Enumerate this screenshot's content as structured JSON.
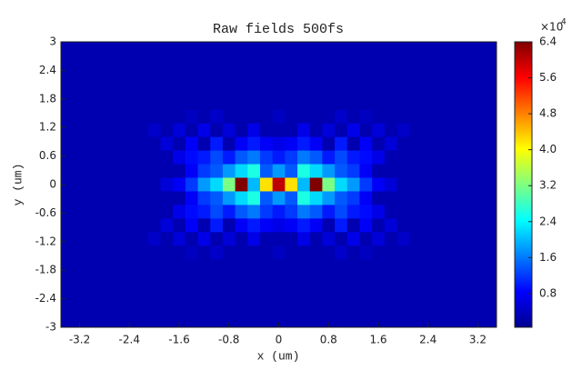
{
  "chart_data": {
    "type": "heatmap",
    "title": "Raw fields 500fs",
    "x_label": "x (um)",
    "y_label": "y (um)",
    "xlim": [
      -3.5,
      3.5
    ],
    "ylim": [
      -3,
      3
    ],
    "xticks": [
      -3.2,
      -2.4,
      -1.6,
      -0.8,
      0,
      0.8,
      1.6,
      2.4,
      3.2
    ],
    "yticks": [
      -3,
      -2.4,
      -1.8,
      -1.2,
      -0.6,
      0,
      0.6,
      1.2,
      1.8,
      2.4,
      3
    ],
    "clim": [
      0.05,
      6.4
    ],
    "cticks": [
      0.8,
      1.6,
      2.4,
      3.2,
      {
        "value": 4,
        "label": "4.0"
      },
      4.8,
      5.6,
      6.4
    ],
    "colorbar_multiplier": "×10",
    "colorbar_exponent": "4",
    "colormap": "jet",
    "z": [
      [
        0.35,
        0.35,
        0.35,
        0.35,
        0.35,
        0.35,
        0.35,
        0.35,
        0.35,
        0.35,
        0.35,
        0.35,
        0.35,
        0.35,
        0.35,
        0.35,
        0.35,
        0.35,
        0.35,
        0.35,
        0.35,
        0.35,
        0.35,
        0.35,
        0.35,
        0.35,
        0.35,
        0.35,
        0.35,
        0.35,
        0.35,
        0.35,
        0.35,
        0.35,
        0.35
      ],
      [
        0.35,
        0.35,
        0.35,
        0.35,
        0.35,
        0.35,
        0.35,
        0.35,
        0.35,
        0.35,
        0.35,
        0.35,
        0.35,
        0.35,
        0.35,
        0.35,
        0.35,
        0.35,
        0.35,
        0.35,
        0.35,
        0.35,
        0.35,
        0.35,
        0.35,
        0.35,
        0.35,
        0.35,
        0.35,
        0.35,
        0.35,
        0.35,
        0.35,
        0.35,
        0.35
      ],
      [
        0.35,
        0.35,
        0.35,
        0.35,
        0.35,
        0.35,
        0.35,
        0.35,
        0.35,
        0.35,
        0.35,
        0.35,
        0.35,
        0.35,
        0.35,
        0.35,
        0.35,
        0.35,
        0.35,
        0.35,
        0.35,
        0.35,
        0.35,
        0.35,
        0.35,
        0.35,
        0.35,
        0.35,
        0.35,
        0.35,
        0.35,
        0.35,
        0.35,
        0.35,
        0.35
      ],
      [
        0.35,
        0.35,
        0.35,
        0.35,
        0.35,
        0.35,
        0.35,
        0.35,
        0.35,
        0.35,
        0.35,
        0.35,
        0.35,
        0.35,
        0.35,
        0.35,
        0.35,
        0.35,
        0.35,
        0.35,
        0.35,
        0.35,
        0.35,
        0.35,
        0.35,
        0.35,
        0.35,
        0.35,
        0.35,
        0.35,
        0.35,
        0.35,
        0.35,
        0.35,
        0.35
      ],
      [
        0.35,
        0.35,
        0.35,
        0.35,
        0.35,
        0.35,
        0.35,
        0.35,
        0.35,
        0.35,
        0.35,
        0.35,
        0.35,
        0.35,
        0.35,
        0.35,
        0.35,
        0.35,
        0.35,
        0.35,
        0.35,
        0.35,
        0.35,
        0.35,
        0.35,
        0.35,
        0.35,
        0.35,
        0.35,
        0.35,
        0.35,
        0.35,
        0.35,
        0.35,
        0.35
      ],
      [
        0.35,
        0.35,
        0.35,
        0.35,
        0.35,
        0.35,
        0.35,
        0.35,
        0.35,
        0.35,
        0.45,
        0.35,
        0.5,
        0.35,
        0.35,
        0.35,
        0.35,
        0.45,
        0.35,
        0.35,
        0.35,
        0.35,
        0.5,
        0.35,
        0.45,
        0.35,
        0.35,
        0.35,
        0.35,
        0.35,
        0.35,
        0.35,
        0.35,
        0.35,
        0.35
      ],
      [
        0.35,
        0.35,
        0.35,
        0.35,
        0.35,
        0.35,
        0.35,
        0.5,
        0.35,
        0.6,
        0.35,
        0.7,
        0.35,
        0.6,
        0.35,
        0.7,
        0.35,
        0.35,
        0.35,
        0.7,
        0.35,
        0.6,
        0.35,
        0.7,
        0.35,
        0.6,
        0.35,
        0.5,
        0.35,
        0.35,
        0.35,
        0.35,
        0.35,
        0.35,
        0.35
      ],
      [
        0.35,
        0.35,
        0.35,
        0.35,
        0.35,
        0.35,
        0.35,
        0.35,
        0.6,
        0.35,
        0.8,
        0.35,
        1.0,
        0.35,
        0.8,
        1.0,
        0.8,
        0.7,
        0.8,
        1.0,
        0.8,
        0.35,
        1.0,
        0.35,
        0.8,
        0.35,
        0.6,
        0.35,
        0.35,
        0.35,
        0.35,
        0.35,
        0.35,
        0.35,
        0.35
      ],
      [
        0.35,
        0.35,
        0.35,
        0.35,
        0.35,
        0.35,
        0.35,
        0.35,
        0.35,
        0.7,
        0.9,
        1.0,
        1.3,
        1.0,
        1.4,
        1.6,
        1.2,
        1.0,
        1.2,
        1.6,
        1.4,
        1.0,
        1.3,
        1.0,
        0.9,
        0.7,
        0.35,
        0.35,
        0.35,
        0.35,
        0.35,
        0.35,
        0.35,
        0.35,
        0.35
      ],
      [
        0.35,
        0.35,
        0.35,
        0.35,
        0.35,
        0.35,
        0.35,
        0.35,
        0.35,
        0.35,
        0.8,
        1.2,
        1.4,
        1.8,
        2.2,
        2.6,
        1.4,
        1.8,
        1.4,
        2.6,
        2.2,
        1.8,
        1.4,
        1.2,
        0.8,
        0.35,
        0.35,
        0.35,
        0.35,
        0.35,
        0.35,
        0.35,
        0.35,
        0.35,
        0.35
      ],
      [
        0.35,
        0.35,
        0.35,
        0.35,
        0.35,
        0.35,
        0.35,
        0.35,
        0.6,
        0.8,
        1.2,
        1.8,
        2.2,
        3.2,
        6.4,
        2.0,
        4.2,
        6.0,
        4.2,
        2.0,
        6.4,
        3.2,
        2.2,
        1.8,
        1.2,
        0.8,
        0.6,
        0.35,
        0.35,
        0.35,
        0.35,
        0.35,
        0.35,
        0.35,
        0.35
      ],
      [
        0.35,
        0.35,
        0.35,
        0.35,
        0.35,
        0.35,
        0.35,
        0.35,
        0.35,
        0.35,
        0.8,
        1.2,
        1.4,
        1.8,
        2.2,
        2.6,
        1.4,
        1.8,
        1.4,
        2.6,
        2.2,
        1.8,
        1.4,
        1.2,
        0.8,
        0.35,
        0.35,
        0.35,
        0.35,
        0.35,
        0.35,
        0.35,
        0.35,
        0.35,
        0.35
      ],
      [
        0.35,
        0.35,
        0.35,
        0.35,
        0.35,
        0.35,
        0.35,
        0.35,
        0.35,
        0.7,
        0.9,
        1.0,
        1.3,
        1.0,
        1.4,
        1.6,
        1.2,
        1.0,
        1.2,
        1.6,
        1.4,
        1.0,
        1.3,
        1.0,
        0.9,
        0.7,
        0.35,
        0.35,
        0.35,
        0.35,
        0.35,
        0.35,
        0.35,
        0.35,
        0.35
      ],
      [
        0.35,
        0.35,
        0.35,
        0.35,
        0.35,
        0.35,
        0.35,
        0.35,
        0.6,
        0.35,
        0.8,
        0.35,
        1.0,
        0.35,
        0.8,
        1.0,
        0.8,
        0.7,
        0.8,
        1.0,
        0.8,
        0.35,
        1.0,
        0.35,
        0.8,
        0.35,
        0.6,
        0.35,
        0.35,
        0.35,
        0.35,
        0.35,
        0.35,
        0.35,
        0.35
      ],
      [
        0.35,
        0.35,
        0.35,
        0.35,
        0.35,
        0.35,
        0.35,
        0.5,
        0.35,
        0.6,
        0.35,
        0.7,
        0.35,
        0.6,
        0.35,
        0.7,
        0.35,
        0.35,
        0.35,
        0.7,
        0.35,
        0.6,
        0.35,
        0.7,
        0.35,
        0.6,
        0.35,
        0.5,
        0.35,
        0.35,
        0.35,
        0.35,
        0.35,
        0.35,
        0.35
      ],
      [
        0.35,
        0.35,
        0.35,
        0.35,
        0.35,
        0.35,
        0.35,
        0.35,
        0.35,
        0.35,
        0.45,
        0.35,
        0.5,
        0.35,
        0.35,
        0.35,
        0.35,
        0.45,
        0.35,
        0.35,
        0.35,
        0.35,
        0.5,
        0.35,
        0.45,
        0.35,
        0.35,
        0.35,
        0.35,
        0.35,
        0.35,
        0.35,
        0.35,
        0.35,
        0.35
      ],
      [
        0.35,
        0.35,
        0.35,
        0.35,
        0.35,
        0.35,
        0.35,
        0.35,
        0.35,
        0.35,
        0.35,
        0.35,
        0.35,
        0.35,
        0.35,
        0.35,
        0.35,
        0.35,
        0.35,
        0.35,
        0.35,
        0.35,
        0.35,
        0.35,
        0.35,
        0.35,
        0.35,
        0.35,
        0.35,
        0.35,
        0.35,
        0.35,
        0.35,
        0.35,
        0.35
      ],
      [
        0.35,
        0.35,
        0.35,
        0.35,
        0.35,
        0.35,
        0.35,
        0.35,
        0.35,
        0.35,
        0.35,
        0.35,
        0.35,
        0.35,
        0.35,
        0.35,
        0.35,
        0.35,
        0.35,
        0.35,
        0.35,
        0.35,
        0.35,
        0.35,
        0.35,
        0.35,
        0.35,
        0.35,
        0.35,
        0.35,
        0.35,
        0.35,
        0.35,
        0.35,
        0.35
      ],
      [
        0.35,
        0.35,
        0.35,
        0.35,
        0.35,
        0.35,
        0.35,
        0.35,
        0.35,
        0.35,
        0.35,
        0.35,
        0.35,
        0.35,
        0.35,
        0.35,
        0.35,
        0.35,
        0.35,
        0.35,
        0.35,
        0.35,
        0.35,
        0.35,
        0.35,
        0.35,
        0.35,
        0.35,
        0.35,
        0.35,
        0.35,
        0.35,
        0.35,
        0.35,
        0.35
      ],
      [
        0.35,
        0.35,
        0.35,
        0.35,
        0.35,
        0.35,
        0.35,
        0.35,
        0.35,
        0.35,
        0.35,
        0.35,
        0.35,
        0.35,
        0.35,
        0.35,
        0.35,
        0.35,
        0.35,
        0.35,
        0.35,
        0.35,
        0.35,
        0.35,
        0.35,
        0.35,
        0.35,
        0.35,
        0.35,
        0.35,
        0.35,
        0.35,
        0.35,
        0.35,
        0.35
      ],
      [
        0.35,
        0.35,
        0.35,
        0.35,
        0.35,
        0.35,
        0.35,
        0.35,
        0.35,
        0.35,
        0.35,
        0.35,
        0.35,
        0.35,
        0.35,
        0.35,
        0.35,
        0.35,
        0.35,
        0.35,
        0.35,
        0.35,
        0.35,
        0.35,
        0.35,
        0.35,
        0.35,
        0.35,
        0.35,
        0.35,
        0.35,
        0.35,
        0.35,
        0.35,
        0.35
      ]
    ]
  }
}
